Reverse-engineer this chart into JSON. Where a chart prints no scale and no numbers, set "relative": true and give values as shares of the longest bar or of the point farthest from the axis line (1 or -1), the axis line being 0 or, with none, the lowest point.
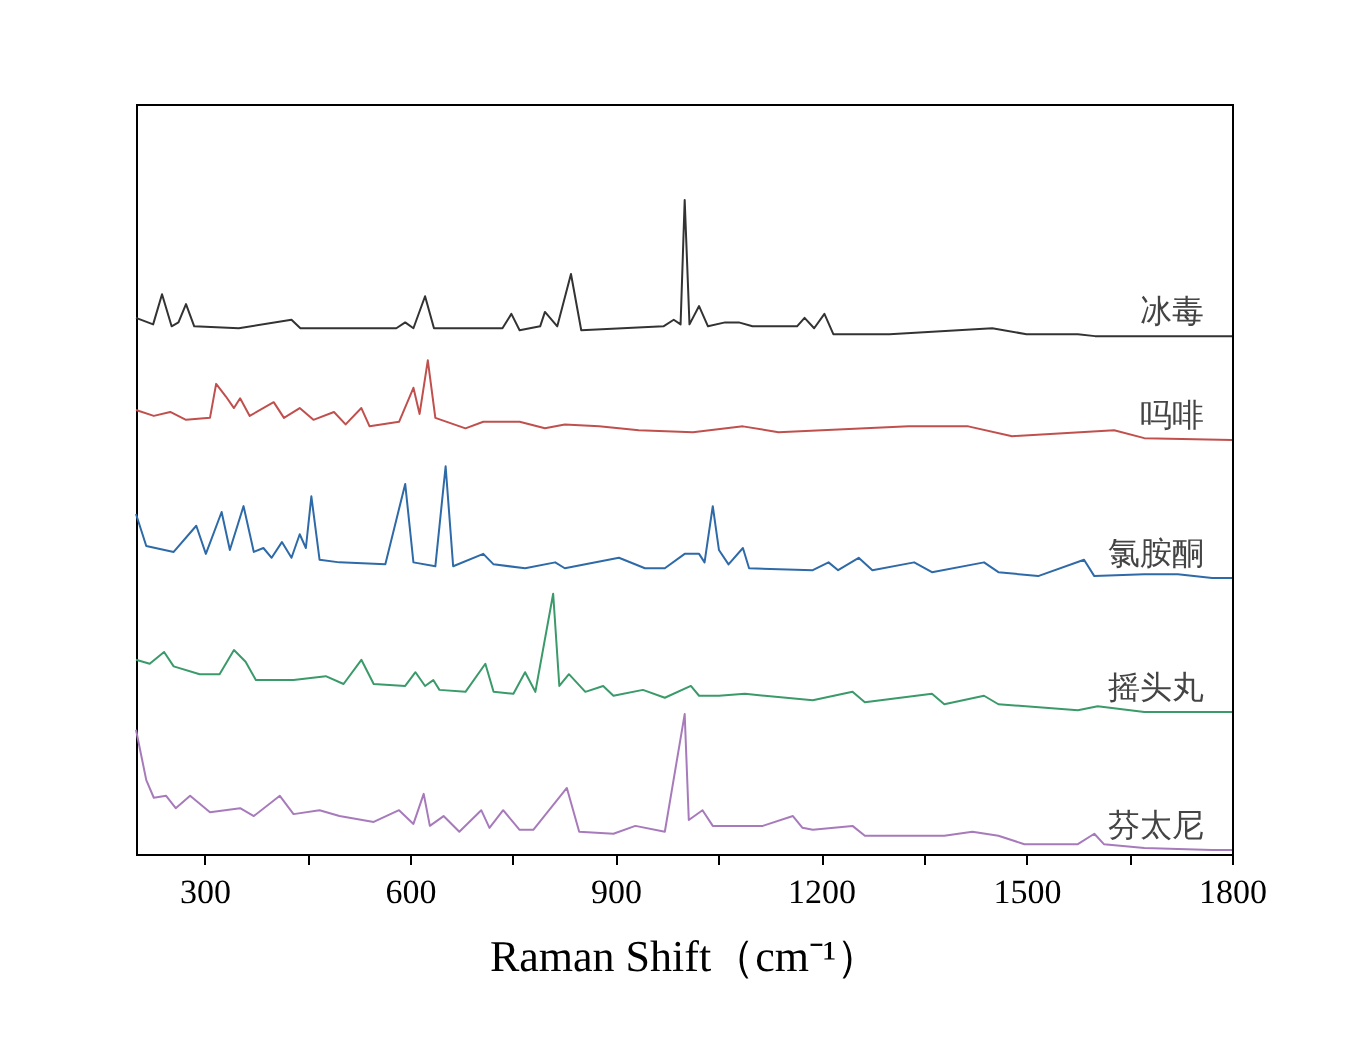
{
  "chart_data": {
    "type": "line",
    "relative": true,
    "xlabel": "Raman Shift（cm⁻¹）",
    "xlim": [
      200,
      1800
    ],
    "xticks": [
      300,
      {
        "value": 450,
        "label": null
      },
      600,
      {
        "value": 750,
        "label": null
      },
      900,
      {
        "value": 1050,
        "label": null
      },
      1200,
      {
        "value": 1350,
        "label": null
      },
      1500,
      {
        "value": 1650,
        "label": null
      },
      1800
    ],
    "series": [
      {
        "name": "冰毒",
        "color": "#333333",
        "x": [
          200,
          225,
          238,
          252,
          262,
          273,
          285,
          350,
          427,
          440,
          580,
          593,
          605,
          622,
          635,
          735,
          748,
          760,
          790,
          797,
          815,
          835,
          850,
          970,
          985,
          995,
          1001,
          1008,
          1022,
          1035,
          1060,
          1080,
          1100,
          1165,
          1176,
          1190,
          1205,
          1218,
          1300,
          1450,
          1500,
          1575,
          1600,
          1800
        ],
        "values": [
          0.82,
          0.81,
          0.856,
          0.807,
          0.813,
          0.841,
          0.807,
          0.804,
          0.817,
          0.804,
          0.804,
          0.813,
          0.804,
          0.853,
          0.804,
          0.804,
          0.826,
          0.801,
          0.807,
          0.829,
          0.807,
          0.887,
          0.801,
          0.807,
          0.817,
          0.81,
          1,
          0.81,
          0.838,
          0.807,
          0.813,
          0.813,
          0.807,
          0.807,
          0.82,
          0.804,
          0.826,
          0.795,
          0.795,
          0.804,
          0.795,
          0.795,
          0.792,
          0.792
        ]
      },
      {
        "name": "吗啡",
        "color": "#c0504d",
        "x": [
          200,
          226,
          250,
          273,
          308,
          317,
          331,
          343,
          352,
          366,
          401,
          416,
          439,
          459,
          489,
          506,
          529,
          541,
          584,
          605,
          614,
          626,
          637,
          681,
          707,
          760,
          797,
          826,
          876,
          934,
          1013,
          1086,
          1138,
          1328,
          1415,
          1479,
          1628,
          1672,
          1800
        ],
        "values": [
          0.679,
          0.67,
          0.676,
          0.664,
          0.667,
          0.719,
          0.7,
          0.682,
          0.697,
          0.67,
          0.691,
          0.667,
          0.682,
          0.664,
          0.676,
          0.657,
          0.682,
          0.654,
          0.661,
          0.713,
          0.673,
          0.755,
          0.667,
          0.651,
          0.661,
          0.661,
          0.651,
          0.657,
          0.654,
          0.648,
          0.645,
          0.654,
          0.645,
          0.654,
          0.654,
          0.639,
          0.648,
          0.636,
          0.633
        ]
      },
      {
        "name": "氯胺酮",
        "color": "#2e6aa8",
        "x": [
          200,
          215,
          255,
          288,
          302,
          325,
          337,
          357,
          372,
          386,
          398,
          413,
          427,
          439,
          448,
          456,
          468,
          497,
          564,
          593,
          605,
          637,
          652,
          663,
          707,
          722,
          768,
          812,
          826,
          856,
          905,
          943,
          972,
          1001,
          1022,
          1030,
          1042,
          1051,
          1065,
          1086,
          1095,
          1188,
          1211,
          1225,
          1255,
          1275,
          1336,
          1362,
          1438,
          1459,
          1517,
          1584,
          1599,
          1672,
          1721,
          1771,
          1800
        ],
        "values": [
          0.52,
          0.471,
          0.462,
          0.502,
          0.459,
          0.523,
          0.465,
          0.532,
          0.462,
          0.468,
          0.453,
          0.477,
          0.453,
          0.489,
          0.468,
          0.547,
          0.45,
          0.446,
          0.443,
          0.566,
          0.446,
          0.44,
          0.593,
          0.44,
          0.459,
          0.443,
          0.437,
          0.446,
          0.437,
          0.443,
          0.453,
          0.437,
          0.437,
          0.459,
          0.459,
          0.446,
          0.532,
          0.465,
          0.443,
          0.468,
          0.437,
          0.434,
          0.446,
          0.434,
          0.453,
          0.434,
          0.446,
          0.431,
          0.446,
          0.431,
          0.425,
          0.45,
          0.425,
          0.428,
          0.428,
          0.422,
          0.422
        ]
      },
      {
        "name": "摇头丸",
        "color": "#3a9a6a",
        "x": [
          200,
          220,
          241,
          255,
          293,
          322,
          343,
          360,
          375,
          430,
          477,
          503,
          529,
          547,
          593,
          608,
          622,
          634,
          643,
          681,
          710,
          722,
          751,
          768,
          783,
          809,
          818,
          832,
          856,
          882,
          897,
          940,
          972,
          1010,
          1022,
          1051,
          1089,
          1188,
          1246,
          1264,
          1362,
          1380,
          1438,
          1459,
          1575,
          1604,
          1672,
          1800
        ],
        "values": [
          0.297,
          0.291,
          0.309,
          0.287,
          0.275,
          0.275,
          0.312,
          0.294,
          0.266,
          0.266,
          0.272,
          0.26,
          0.297,
          0.26,
          0.257,
          0.278,
          0.257,
          0.266,
          0.251,
          0.248,
          0.291,
          0.248,
          0.245,
          0.278,
          0.248,
          0.398,
          0.257,
          0.275,
          0.248,
          0.257,
          0.242,
          0.251,
          0.239,
          0.257,
          0.242,
          0.242,
          0.245,
          0.235,
          0.248,
          0.232,
          0.245,
          0.229,
          0.242,
          0.229,
          0.22,
          0.226,
          0.217,
          0.217
        ]
      },
      {
        "name": "芬太尼",
        "color": "#a77bbb",
        "x": [
          200,
          215,
          226,
          244,
          258,
          279,
          308,
          352,
          372,
          410,
          430,
          468,
          497,
          547,
          584,
          605,
          620,
          629,
          649,
          672,
          704,
          716,
          736,
          760,
          780,
          829,
          847,
          897,
          929,
          972,
          1001,
          1007,
          1027,
          1042,
          1115,
          1159,
          1173,
          1188,
          1246,
          1264,
          1380,
          1421,
          1459,
          1497,
          1575,
          1599,
          1613,
          1672,
          1771,
          1800
        ],
        "values": [
          0.19,
          0.113,
          0.086,
          0.089,
          0.07,
          0.089,
          0.064,
          0.07,
          0.058,
          0.089,
          0.061,
          0.067,
          0.058,
          0.049,
          0.067,
          0.046,
          0.092,
          0.043,
          0.058,
          0.034,
          0.067,
          0.04,
          0.067,
          0.037,
          0.037,
          0.101,
          0.034,
          0.031,
          0.043,
          0.034,
          0.214,
          0.052,
          0.067,
          0.043,
          0.043,
          0.058,
          0.04,
          0.037,
          0.043,
          0.028,
          0.028,
          0.034,
          0.028,
          0.015,
          0.015,
          0.031,
          0.015,
          0.009,
          0.006,
          0.006
        ]
      }
    ]
  }
}
